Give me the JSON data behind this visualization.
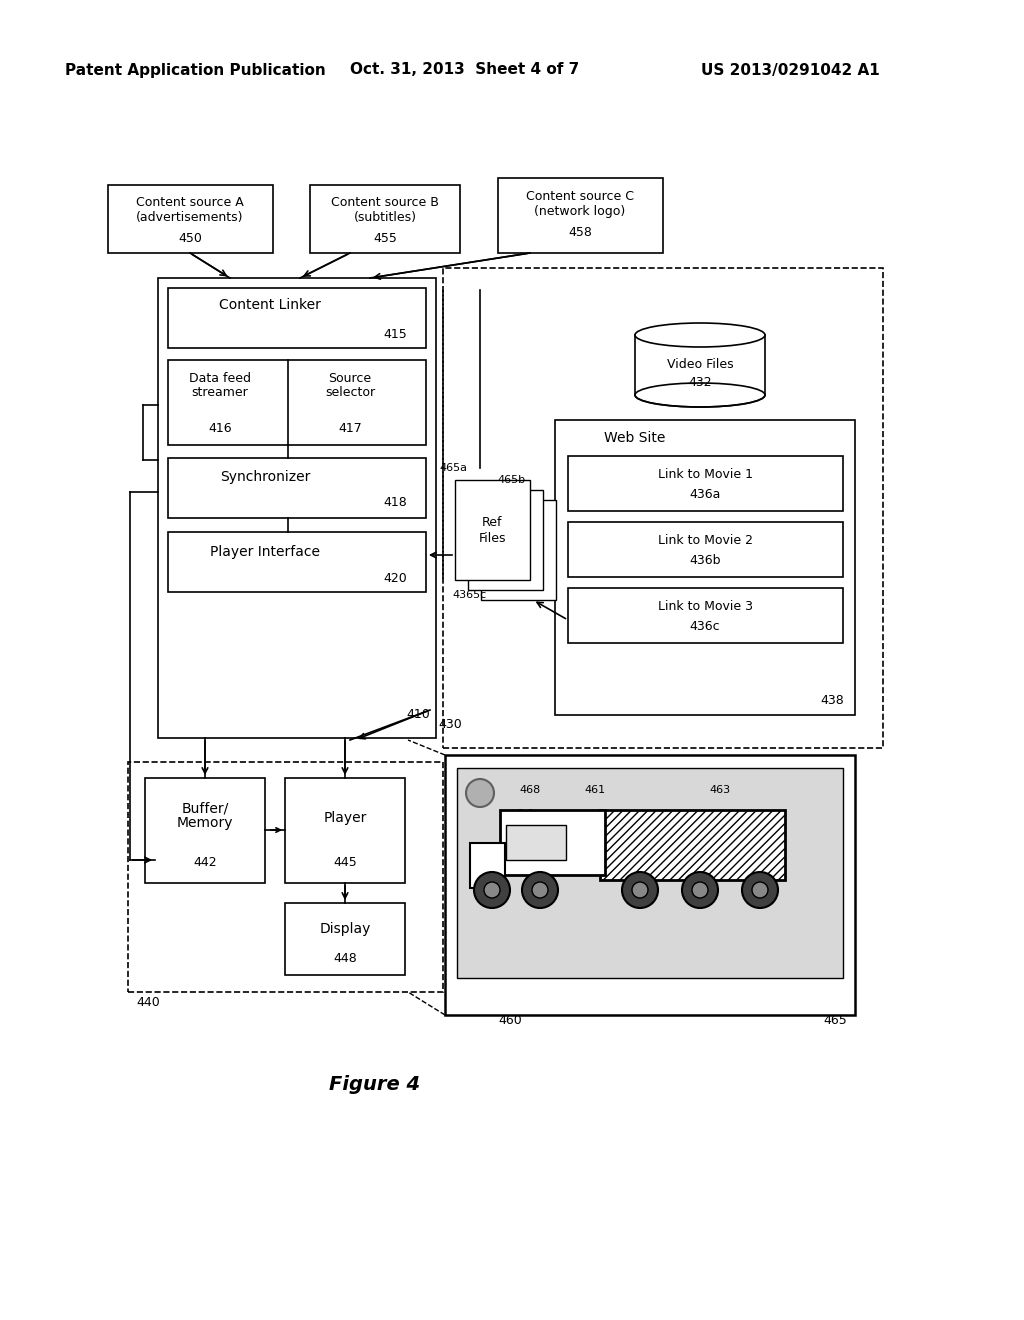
{
  "bg_color": "#ffffff",
  "header_line1": "Patent Application Publication",
  "header_date": "Oct. 31, 2013  Sheet 4 of 7",
  "header_patent": "US 2013/0291042 A1",
  "figure_label": "Figure 4"
}
